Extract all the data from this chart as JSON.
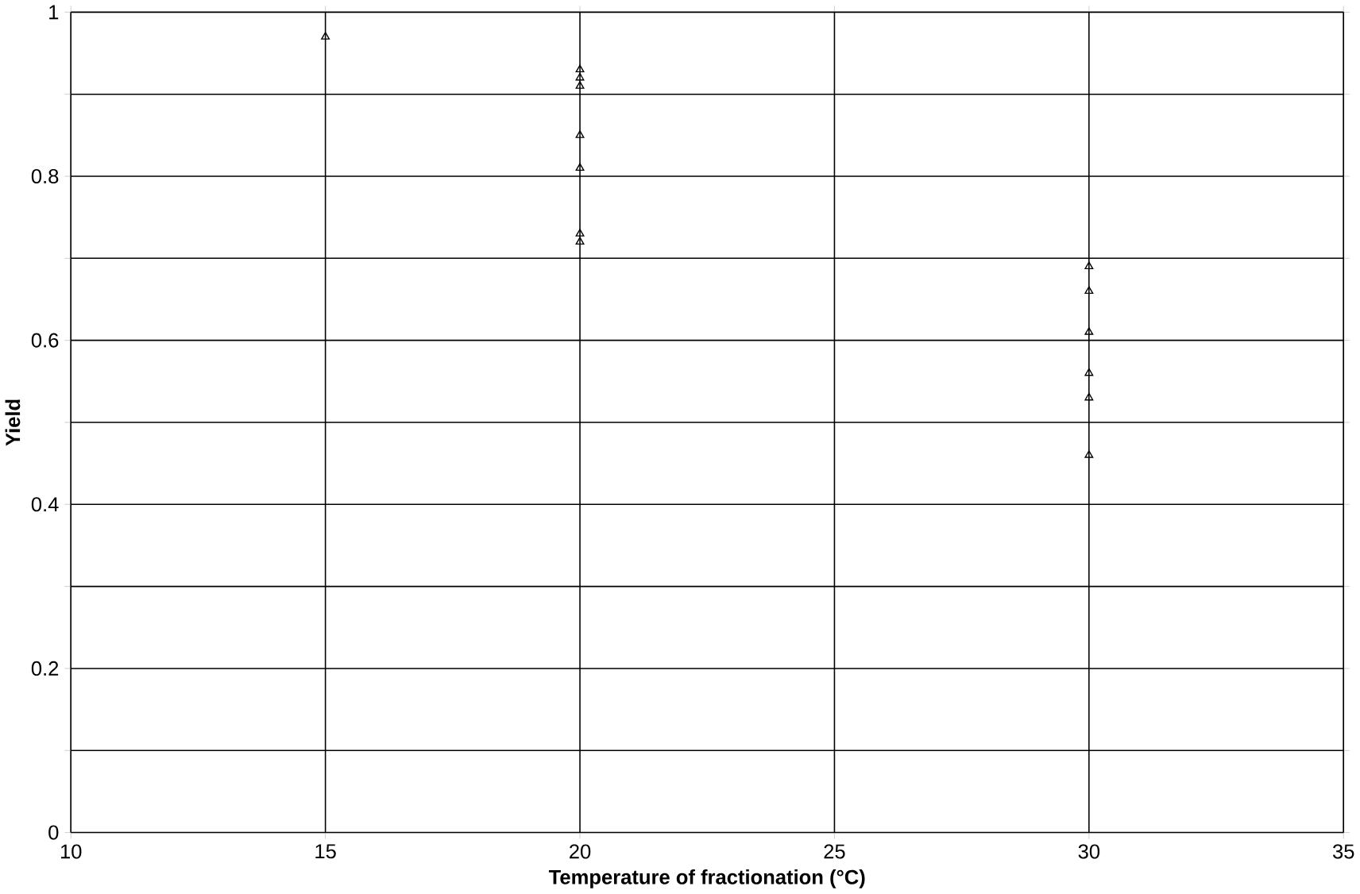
{
  "chart_data": {
    "type": "scatter",
    "xlabel": "Temperature of fractionation (°C)",
    "ylabel": "Yield",
    "x": [
      15,
      20,
      20,
      20,
      20,
      20,
      20,
      20,
      30,
      30,
      30,
      30,
      30,
      30
    ],
    "values": [
      0.97,
      0.93,
      0.92,
      0.91,
      0.85,
      0.81,
      0.73,
      0.72,
      0.69,
      0.66,
      0.61,
      0.56,
      0.53,
      0.46
    ],
    "color": "#000000",
    "marker": "triangle",
    "grid": true,
    "xlim": [
      10,
      35
    ],
    "xticks": [
      10,
      15,
      20,
      25,
      30,
      35
    ],
    "ylim": [
      0,
      1
    ],
    "yticks": [
      0,
      {
        "value": 0.1,
        "label": null
      },
      0.2,
      {
        "value": 0.3,
        "label": null
      },
      0.4,
      {
        "value": 0.5,
        "label": null
      },
      0.6,
      {
        "value": 0.7,
        "label": null
      },
      0.8,
      {
        "value": 0.9,
        "label": null
      },
      1
    ]
  }
}
